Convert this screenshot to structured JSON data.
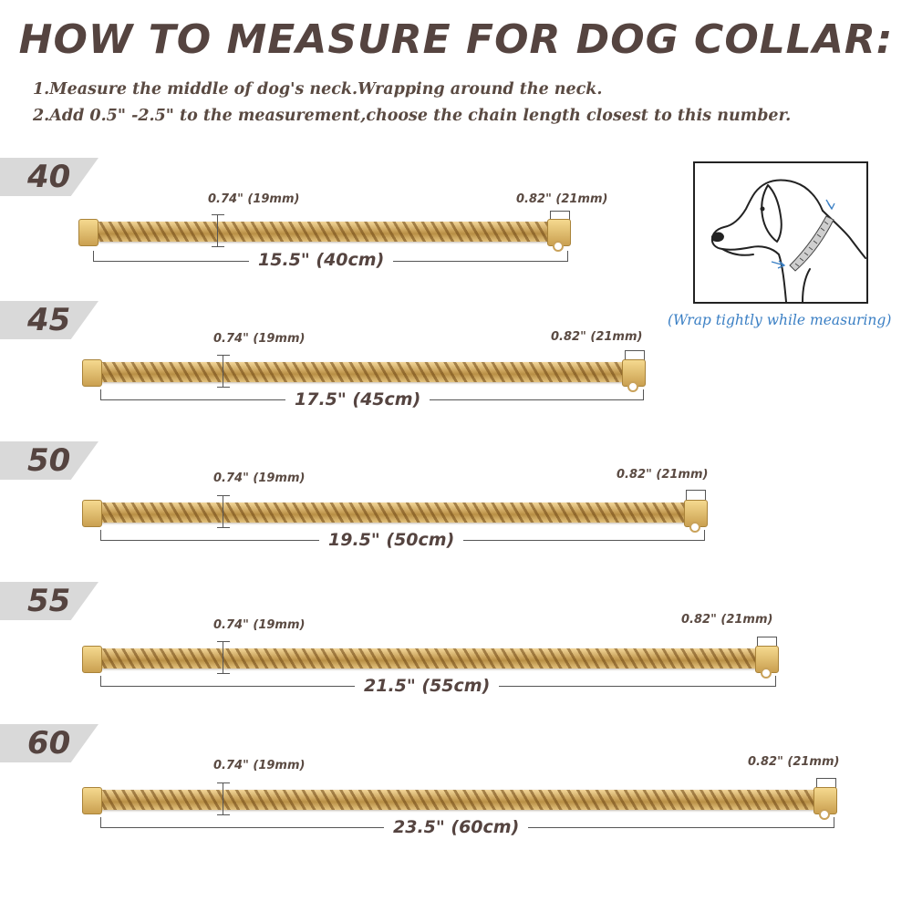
{
  "title": "HOW TO MEASURE FOR DOG COLLAR:",
  "instructions": [
    "1.Measure the  middle of dog's neck.Wrapping around the neck.",
    "2.Add 0.5\" -2.5\" to the measurement,choose the chain length closest to this number."
  ],
  "illustration": {
    "icon": "dog-neck-measuring-tape-icon",
    "caption": "(Wrap tightly while measuring)",
    "caption_color": "#3a7fc4"
  },
  "colors": {
    "gold": "#c9a25a",
    "tab": "#d9d9d9",
    "text": "#554440"
  },
  "sizes": [
    {
      "size": "40",
      "width_label": "0.74\" (19mm)",
      "clasp_label": "0.82\" (21mm)",
      "length_label": "15.5\" (40cm)"
    },
    {
      "size": "45",
      "width_label": "0.74\" (19mm)",
      "clasp_label": "0.82\" (21mm)",
      "length_label": "17.5\" (45cm)"
    },
    {
      "size": "50",
      "width_label": "0.74\" (19mm)",
      "clasp_label": "0.82\" (21mm)",
      "length_label": "19.5\" (50cm)"
    },
    {
      "size": "55",
      "width_label": "0.74\" (19mm)",
      "clasp_label": "0.82\" (21mm)",
      "length_label": "21.5\" (55cm)"
    },
    {
      "size": "60",
      "width_label": "0.74\" (19mm)",
      "clasp_label": "0.82\" (21mm)",
      "length_label": "23.5\" (60cm)"
    }
  ]
}
